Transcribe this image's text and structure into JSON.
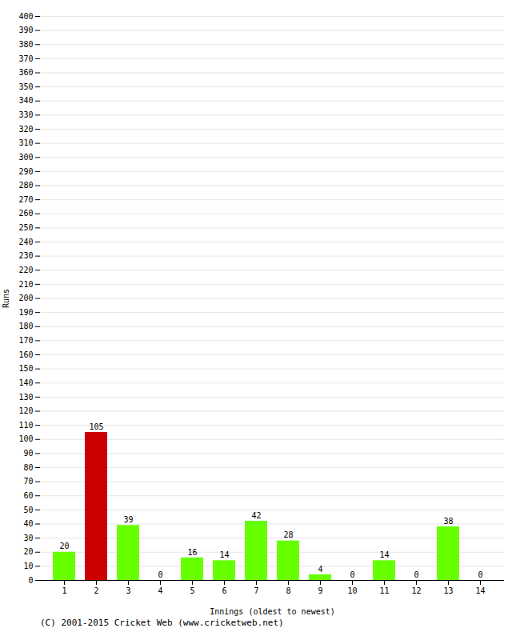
{
  "chart_data": {
    "type": "bar",
    "xlabel": "Innings (oldest to newest)",
    "ylabel": "Runs",
    "categories": [
      "1",
      "2",
      "3",
      "4",
      "5",
      "6",
      "7",
      "8",
      "9",
      "10",
      "11",
      "12",
      "13",
      "14"
    ],
    "values": [
      20,
      105,
      39,
      0,
      16,
      14,
      42,
      28,
      4,
      0,
      14,
      0,
      38,
      0
    ],
    "colors": [
      "#66ff00",
      "#cc0000",
      "#66ff00",
      "#66ff00",
      "#66ff00",
      "#66ff00",
      "#66ff00",
      "#66ff00",
      "#66ff00",
      "#66ff00",
      "#66ff00",
      "#66ff00",
      "#66ff00",
      "#66ff00"
    ],
    "ylim": [
      0,
      400
    ],
    "yticks": [
      0,
      10,
      20,
      30,
      40,
      50,
      60,
      70,
      80,
      90,
      100,
      110,
      120,
      130,
      140,
      150,
      160,
      170,
      180,
      190,
      200,
      210,
      220,
      230,
      240,
      250,
      260,
      270,
      280,
      290,
      300,
      310,
      320,
      330,
      340,
      350,
      360,
      370,
      380,
      390,
      400
    ],
    "grid": true,
    "data_labels": true,
    "annotations": [
      "(C) 2001-2015 Cricket Web (www.cricketweb.net)"
    ]
  }
}
